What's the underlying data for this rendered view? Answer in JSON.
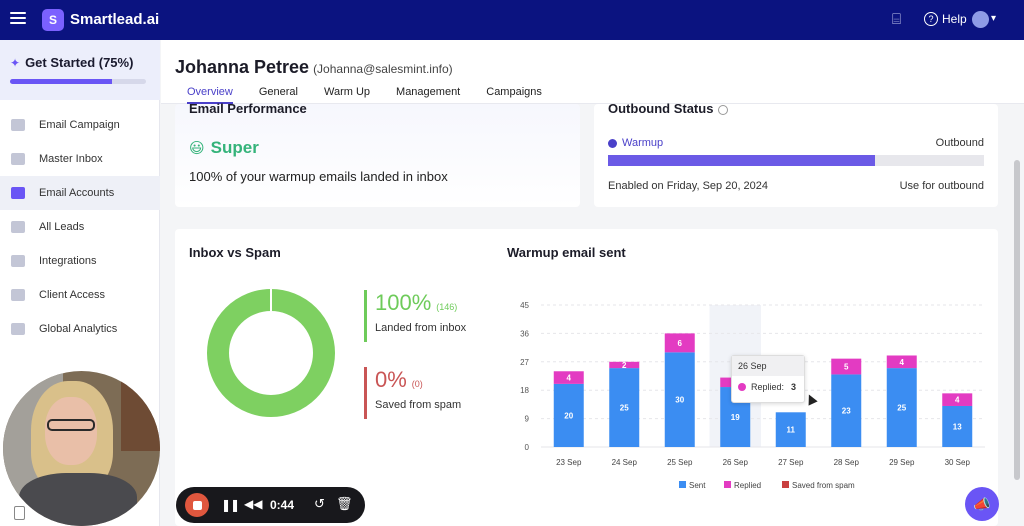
{
  "app": {
    "name": "Smartlead.ai",
    "logo_glyph": "S",
    "help_label": "Help",
    "help_icon_glyph": "?",
    "gift_icon_glyph": "⌸",
    "caret_glyph": "▾"
  },
  "get_started": {
    "label": "Get Started (75%)",
    "progress": 0.75,
    "icon_glyph": "✦"
  },
  "sidebar": {
    "items": [
      {
        "label": "Email Campaign",
        "icon": "campaign-icon",
        "active": false
      },
      {
        "label": "Master Inbox",
        "icon": "inbox-icon",
        "active": false
      },
      {
        "label": "Email Accounts",
        "icon": "mail-icon",
        "active": true
      },
      {
        "label": "All Leads",
        "icon": "leads-icon",
        "active": false
      },
      {
        "label": "Integrations",
        "icon": "puzzle-icon",
        "active": false
      },
      {
        "label": "Client Access",
        "icon": "bolt-icon",
        "active": false
      },
      {
        "label": "Global Analytics",
        "icon": "analytics-icon",
        "active": false
      }
    ]
  },
  "profile": {
    "name": "Johanna Petree",
    "email": "(Johanna@salesmint.info)"
  },
  "tabs": [
    {
      "label": "Overview",
      "active": true
    },
    {
      "label": "General",
      "active": false
    },
    {
      "label": "Warm Up",
      "active": false
    },
    {
      "label": "Management",
      "active": false
    },
    {
      "label": "Campaigns",
      "active": false
    }
  ],
  "email_performance": {
    "title": "Email Performance",
    "emoji": "😃",
    "grade": "Super",
    "summary": "100% of your warmup emails landed in inbox"
  },
  "outbound_status": {
    "title": "Outbound Status",
    "warmup_label": "Warmup",
    "outbound_label": "Outbound",
    "warmup_fraction": 0.71,
    "enabled_text": "Enabled on Friday, Sep 20, 2024",
    "use_text": "Use for outbound"
  },
  "inbox_vs_spam": {
    "title": "Inbox vs Spam",
    "inbox_percent": "100%",
    "inbox_count": "(146)",
    "inbox_label": "Landed from inbox",
    "spam_percent": "0%",
    "spam_count": "(0)",
    "spam_label": "Saved from spam"
  },
  "warmup_chart": {
    "title": "Warmup email sent"
  },
  "chart_data": {
    "type": "bar",
    "stacked": true,
    "title": "Warmup email sent",
    "categories": [
      "23 Sep",
      "24 Sep",
      "25 Sep",
      "26 Sep",
      "27 Sep",
      "28 Sep",
      "29 Sep",
      "30 Sep"
    ],
    "series": [
      {
        "name": "Sent",
        "color": "#3b8df2",
        "values": [
          20,
          25,
          30,
          19,
          11,
          23,
          25,
          13
        ]
      },
      {
        "name": "Replied",
        "color": "#e33bc2",
        "values": [
          4,
          2,
          6,
          3,
          0,
          5,
          4,
          4
        ]
      },
      {
        "name": "Saved from spam",
        "color": "#c94040",
        "values": [
          0,
          0,
          0,
          0,
          0,
          0,
          0,
          0
        ]
      }
    ],
    "ylim": [
      0,
      45
    ],
    "yticks": [
      0,
      9,
      18,
      27,
      36,
      45
    ],
    "legend": "bottom",
    "grid": true
  },
  "tooltip": {
    "date": "26 Sep",
    "label": "Replied:",
    "value": "3"
  },
  "recorder": {
    "time": "0:44",
    "pause_glyph": "❚❚",
    "rewind_glyph": "◀◀",
    "restart_glyph": "↺",
    "delete_glyph": "🗑"
  },
  "fab_glyph": "📣"
}
